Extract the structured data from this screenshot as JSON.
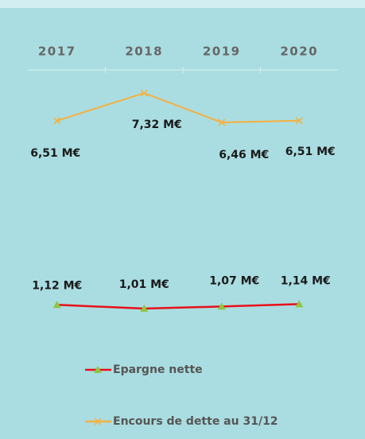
{
  "chart_data": {
    "type": "line",
    "categories": [
      "2017",
      "2018",
      "2019",
      "2020"
    ],
    "series": [
      {
        "name": "Epargne nette",
        "color": "#e8101a",
        "marker_color": "#8dc63f",
        "marker": "triangle",
        "values": [
          1.12,
          1.01,
          1.07,
          1.14
        ],
        "value_labels": [
          "1,12 M€",
          "1,01 M€",
          "1,07 M€",
          "1,14 M€"
        ]
      },
      {
        "name": "Encours de dette au 31/12",
        "color": "#f5b041",
        "marker_color": "#f5b041",
        "marker": "x",
        "values": [
          6.51,
          7.32,
          6.46,
          6.51
        ],
        "value_labels": [
          "6,51 M€",
          "7,32 M€",
          "6,46 M€",
          "6,51 M€"
        ]
      }
    ],
    "legend": "bottom"
  }
}
